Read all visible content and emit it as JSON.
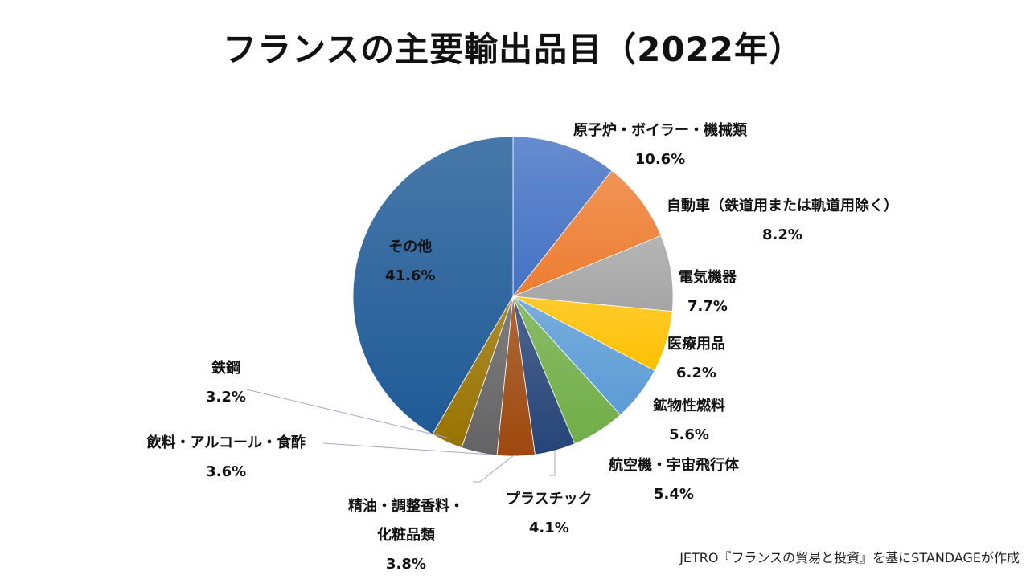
{
  "chart_data": {
    "type": "pie",
    "title": "フランスの主要輸出品目（2022年）",
    "unit": "%",
    "slices": [
      {
        "label": "原子炉・ボイラー・機械類",
        "value": 10.6,
        "display_value": "10.6%",
        "color": "#4472C4"
      },
      {
        "label": "自動車（鉄道用または軌道用除く）",
        "value": 8.2,
        "display_value": "8.2%",
        "color": "#ED7D31"
      },
      {
        "label": "電気機器",
        "value": 7.7,
        "display_value": "7.7%",
        "color": "#A5A5A5"
      },
      {
        "label": "医療用品",
        "value": 6.2,
        "display_value": "6.2%",
        "color": "#FFC000"
      },
      {
        "label": "鉱物性燃料",
        "value": 5.6,
        "display_value": "5.6%",
        "color": "#5B9BD5"
      },
      {
        "label": "航空機・宇宙飛行体",
        "value": 5.4,
        "display_value": "5.4%",
        "color": "#70AD47"
      },
      {
        "label": "プラスチック",
        "value": 4.1,
        "display_value": "4.1%",
        "color": "#264478"
      },
      {
        "label": "精油・調整香料・\n化粧品類",
        "value": 3.8,
        "display_value": "3.8%",
        "color": "#9E480E"
      },
      {
        "label": "飲料・アルコール・食酢",
        "value": 3.6,
        "display_value": "3.6%",
        "color": "#636363"
      },
      {
        "label": "鉄鋼",
        "value": 3.2,
        "display_value": "3.2%",
        "color": "#997300"
      },
      {
        "label": "その他",
        "value": 41.6,
        "display_value": "41.6%",
        "color": "#1F5A96"
      }
    ]
  },
  "source_note": "JETRO『フランスの貿易と投資』を基にSTANDAGEが作成"
}
